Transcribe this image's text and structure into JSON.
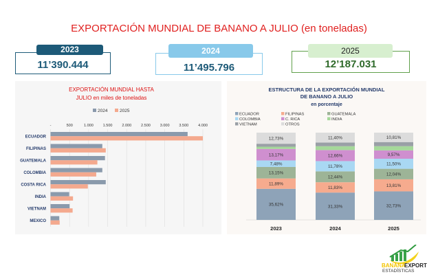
{
  "title": "EXPORTACIÓN MUNDIAL DE BANANO A JULIO (en toneladas)",
  "totals": [
    {
      "year": "2023",
      "value": "11’390.444",
      "color": "#1d5a78"
    },
    {
      "year": "2024",
      "value": "11’495.796",
      "color": "#88c9ea"
    },
    {
      "year": "2025",
      "value": "12’187.031",
      "color": "#5f9f4a"
    }
  ],
  "chart_data": [
    {
      "type": "bar",
      "orientation": "horizontal",
      "title": "EXPORTACIÓN MUNDIAL HASTA JULIO en miles de toneladas",
      "title_lines": [
        "EXPORTACIÓN MUNDIAL HASTA",
        "JULIO en miles de toneladas"
      ],
      "categories": [
        "ECUADOR",
        "FILIPINAS",
        "GUATEMALA",
        "COLOMBIA",
        "COSTA RICA",
        "INDIA",
        "VIETNAM",
        "MEXICO"
      ],
      "series": [
        {
          "name": "2024",
          "color": "#8a9aac",
          "values": [
            3600,
            1360,
            1430,
            1360,
            1450,
            490,
            500,
            230
          ]
        },
        {
          "name": "2025",
          "color": "#f4a98e",
          "values": [
            4000,
            1450,
            1230,
            1200,
            980,
            590,
            580,
            240
          ]
        }
      ],
      "xlim": [
        0,
        4000
      ],
      "xticks": [
        "-",
        "500",
        "1.000",
        "1.500",
        "2.000",
        "2.500",
        "3.000",
        "3.500",
        "4.000"
      ],
      "grid": true,
      "legend": "top"
    },
    {
      "type": "bar",
      "stacked": true,
      "title_lines": [
        "ESTRUCTURA DE LA EXPORTACIÓN MUNDIAL",
        "DE BANANO A JULIO",
        "en porcentaje"
      ],
      "categories": [
        "2023",
        "2024",
        "2025"
      ],
      "series": [
        {
          "name": "ECUADOR",
          "color": "#8ea3b8",
          "values": [
            35.62,
            31.33,
            32.73
          ],
          "labels": [
            "35,62%",
            "31,33%",
            "32,73%"
          ]
        },
        {
          "name": "FILIPINAS",
          "color": "#f6ab8e",
          "values": [
            11.89,
            11.83,
            13.81
          ],
          "labels": [
            "11,89%",
            "11,83%",
            "13,81%"
          ]
        },
        {
          "name": "GUATEMALA",
          "color": "#9db497",
          "values": [
            13.15,
            12.44,
            12.04
          ],
          "labels": [
            "13,15%",
            "12,44%",
            "12,04%"
          ]
        },
        {
          "name": "COLOMBIA",
          "color": "#a9d8f3",
          "values": [
            7.48,
            11.78,
            11.5
          ],
          "labels": [
            "7,48%",
            "11,78%",
            "11,50%"
          ]
        },
        {
          "name": "C. RICA",
          "color": "#cf8fcf",
          "values": [
            13.17,
            12.66,
            9.57
          ],
          "labels": [
            "13,17%",
            "12,66%",
            "9,57%"
          ]
        },
        {
          "name": "INDIA",
          "color": "#a5d89a",
          "values": [
            2.5,
            4.4,
            4.8
          ],
          "labels": [
            "",
            "",
            ""
          ]
        },
        {
          "name": "VIETNAM",
          "color": "#9aa0a6",
          "values": [
            3.46,
            4.16,
            4.74
          ],
          "labels": [
            "",
            "",
            ""
          ]
        },
        {
          "name": "OTROS",
          "color": "#dcdcdc",
          "values": [
            12.73,
            11.4,
            10.81
          ],
          "labels": [
            "12,73%",
            "11,40%",
            "10,81%"
          ]
        }
      ],
      "ylim": [
        0,
        100
      ],
      "legend": "top-left"
    }
  ],
  "logo": {
    "line1a": "BANANA",
    "line1b": "EXPORT",
    "line2": "ESTADÍSTICAS"
  }
}
